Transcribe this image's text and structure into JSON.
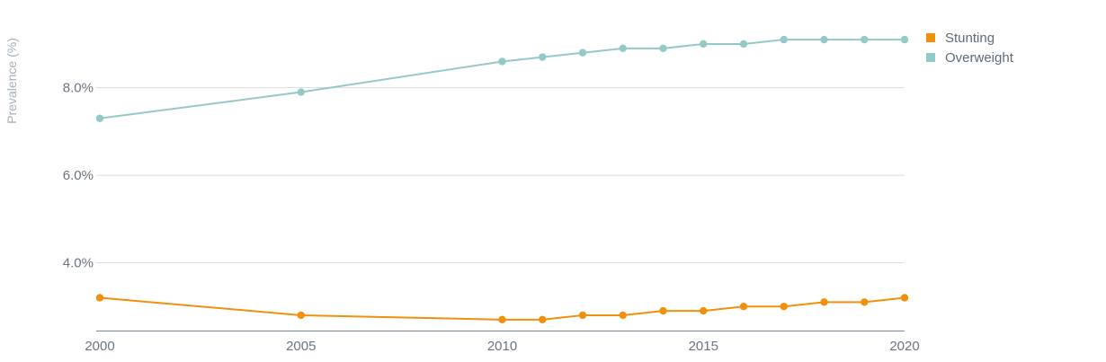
{
  "chart_data": {
    "type": "line",
    "title": "",
    "xlabel": "",
    "ylabel": "Prevalence (%)",
    "ylim": [
      2.45,
      9.8
    ],
    "xlim": [
      2000,
      2020
    ],
    "x": [
      2000,
      2005,
      2010,
      2011,
      2012,
      2013,
      2014,
      2015,
      2016,
      2017,
      2018,
      2019,
      2020
    ],
    "xtick_labels": [
      "2000",
      "2005",
      "2010",
      "2015",
      "2020"
    ],
    "xticks": [
      2000,
      2005,
      2010,
      2015,
      2020
    ],
    "ytick_labels": [
      "4.0%",
      "6.0%",
      "8.0%"
    ],
    "yticks": [
      4.0,
      6.0,
      8.0
    ],
    "grid": true,
    "legend_position": "top-right",
    "series": [
      {
        "name": "Stunting",
        "color": "#f0900c",
        "values": [
          3.2,
          2.8,
          2.7,
          2.7,
          2.8,
          2.8,
          2.9,
          2.9,
          3.0,
          3.0,
          3.1,
          3.1,
          3.2
        ]
      },
      {
        "name": "Overweight",
        "color": "#93c9c6",
        "values": [
          7.3,
          7.9,
          8.6,
          8.7,
          8.8,
          8.9,
          8.9,
          9.0,
          9.0,
          9.1,
          9.1,
          9.1,
          9.1
        ]
      }
    ]
  }
}
